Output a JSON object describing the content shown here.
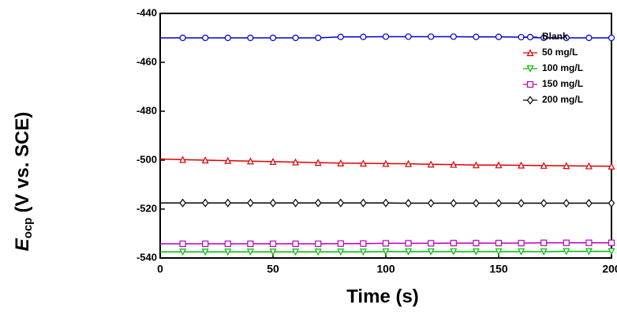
{
  "chart_data": {
    "type": "line",
    "xlabel": "Time (s)",
    "ylabel": {
      "symbol": "E",
      "subscript": "ocp",
      "unit": "(V vs. SCE)"
    },
    "x": [
      0,
      10,
      20,
      30,
      40,
      50,
      60,
      70,
      80,
      90,
      100,
      110,
      120,
      130,
      140,
      150,
      160,
      170,
      180,
      190,
      200
    ],
    "series": [
      {
        "name": "Blank",
        "color": "#0000cc",
        "marker": "circle",
        "values": [
          -450,
          -450,
          -450,
          -450,
          -450,
          -450,
          -450,
          -450,
          -449.6,
          -449.6,
          -449.5,
          -449.5,
          -449.5,
          -449.5,
          -449.6,
          -449.6,
          -449.7,
          -450,
          -450,
          -450,
          -450
        ]
      },
      {
        "name": "50 mg/L",
        "color": "#dd0000",
        "marker": "triangle-up",
        "values": [
          -499.5,
          -499.8,
          -500,
          -500.2,
          -500.4,
          -500.6,
          -500.8,
          -501,
          -501.2,
          -501.3,
          -501.4,
          -501.5,
          -501.7,
          -501.8,
          -502,
          -502,
          -502.1,
          -502.2,
          -502.3,
          -502.4,
          -502.5
        ]
      },
      {
        "name": "100 mg/L",
        "color": "#00bb00",
        "marker": "triangle-down",
        "values": [
          -537.5,
          -537.5,
          -537.5,
          -537.5,
          -537.5,
          -537.5,
          -537.5,
          -537.5,
          -537.5,
          -537.5,
          -537.4,
          -537.4,
          -537.4,
          -537.4,
          -537.4,
          -537.4,
          -537.4,
          -537.4,
          -537.3,
          -537.3,
          -537.3
        ]
      },
      {
        "name": "150 mg/L",
        "color": "#bb00bb",
        "marker": "square",
        "values": [
          -534.2,
          -534.2,
          -534.2,
          -534.2,
          -534.2,
          -534.2,
          -534.2,
          -534.2,
          -534.1,
          -534.1,
          -534,
          -534,
          -534,
          -533.9,
          -533.9,
          -533.9,
          -533.9,
          -533.8,
          -533.8,
          -533.8,
          -533.8
        ]
      },
      {
        "name": "200 mg/L",
        "color": "#000000",
        "marker": "diamond",
        "values": [
          -517.5,
          -517.5,
          -517.5,
          -517.5,
          -517.5,
          -517.5,
          -517.5,
          -517.5,
          -517.5,
          -517.5,
          -517.5,
          -517.6,
          -517.6,
          -517.6,
          -517.6,
          -517.6,
          -517.6,
          -517.6,
          -517.6,
          -517.6,
          -517.6
        ]
      }
    ],
    "xlim": [
      0,
      200
    ],
    "xticks": [
      0,
      50,
      100,
      150,
      200
    ],
    "ylim": [
      -540,
      -440
    ],
    "yticks": [
      -540,
      -520,
      -500,
      -480,
      -460,
      -440
    ],
    "legend": "upper-right",
    "grid": false
  }
}
